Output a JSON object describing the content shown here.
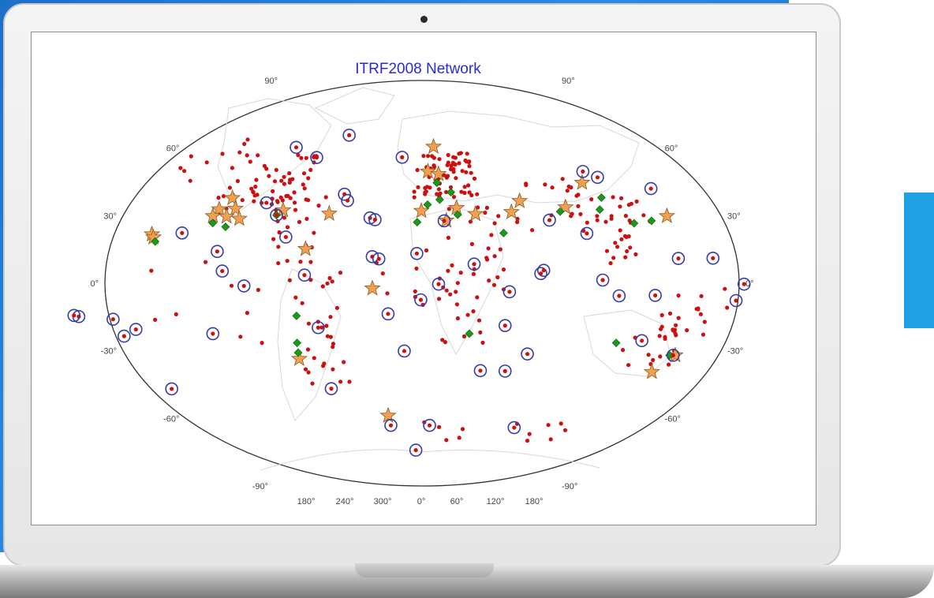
{
  "chart_data": {
    "type": "map",
    "title": "ITRF2008 Network",
    "projection": "elliptical world map (longitude 180° to 180°)",
    "lat_labels_left": [
      "90°",
      "60°",
      "30°",
      "0°",
      "-30°",
      "-60°",
      "-90°"
    ],
    "lat_labels_right": [
      "90°",
      "60°",
      "30°",
      "0°",
      "-30°",
      "-60°",
      "-90°"
    ],
    "lon_labels": [
      "180°",
      "240°",
      "300°",
      "0°",
      "60°",
      "120°",
      "180°"
    ],
    "colors": {
      "site_dot": "#cc1010",
      "ring": "#3a3aa6",
      "star": "#f0a050",
      "diamond": "#1a9a1a",
      "title": "#2b2bd6"
    },
    "marker_types": [
      "red-dot",
      "blue-ring",
      "orange-star",
      "green-diamond"
    ],
    "sites": [
      {
        "type": "star",
        "lon": 8.8,
        "lat": 60.6
      },
      {
        "type": "star",
        "lon": 60.6,
        "lat": 36.5
      },
      {
        "type": "star",
        "lon": -84.5,
        "lat": 32.4
      },
      {
        "type": "star",
        "lon": -56.1,
        "lat": 30.9
      },
      {
        "type": "star",
        "lon": -118.6,
        "lat": 37.8
      },
      {
        "type": "star",
        "lon": -113.9,
        "lat": 33.1
      },
      {
        "type": "star",
        "lon": -123.6,
        "lat": 32.8
      },
      {
        "type": "star",
        "lon": -125.8,
        "lat": 29.8
      },
      {
        "type": "star",
        "lon": -117.5,
        "lat": 29.6
      },
      {
        "type": "star",
        "lon": -109.4,
        "lat": 28.6
      },
      {
        "type": "star",
        "lon": -158.0,
        "lat": 21.7
      },
      {
        "type": "star",
        "lon": -156.5,
        "lat": 20.3
      },
      {
        "type": "star",
        "lon": -67.1,
        "lat": 15.2
      },
      {
        "type": "star",
        "lon": -28.2,
        "lat": -2.3
      },
      {
        "type": "star",
        "lon": -75.1,
        "lat": -33.6
      },
      {
        "type": "star",
        "lon": -25.4,
        "lat": -58.8
      },
      {
        "type": "star",
        "lon": 4.0,
        "lat": 49.6
      },
      {
        "type": "star",
        "lon": 11.1,
        "lat": 48.5
      },
      {
        "type": "star",
        "lon": 21.1,
        "lat": 33.4
      },
      {
        "type": "star",
        "lon": -0.4,
        "lat": 32.1
      },
      {
        "type": "star",
        "lon": 32.2,
        "lat": 30.7
      },
      {
        "type": "star",
        "lon": 54.2,
        "lat": 31.6
      },
      {
        "type": "star",
        "lon": 14.5,
        "lat": 27.8
      },
      {
        "type": "star",
        "lon": 104.6,
        "lat": 44.6
      },
      {
        "type": "star",
        "lon": 87.8,
        "lat": 33.7
      },
      {
        "type": "star",
        "lon": 147.3,
        "lat": 29.8
      },
      {
        "type": "star",
        "lon": 153.8,
        "lat": -32.0
      },
      {
        "type": "star",
        "lon": 145.1,
        "lat": -39.4
      },
      {
        "type": "diamond",
        "lon": -154.8,
        "lat": 18.5
      },
      {
        "type": "diamond",
        "lon": -124.4,
        "lat": 26.7
      },
      {
        "type": "diamond",
        "lon": -116.1,
        "lat": 25.0
      },
      {
        "type": "diamond",
        "lon": -87.7,
        "lat": 30.2
      },
      {
        "type": "diamond",
        "lon": -72.2,
        "lat": -14.5
      },
      {
        "type": "diamond",
        "lon": -74.2,
        "lat": -26.5
      },
      {
        "type": "diamond",
        "lon": -74.8,
        "lat": -30.8
      },
      {
        "type": "diamond",
        "lon": 9.7,
        "lat": 44.6
      },
      {
        "type": "diamond",
        "lon": 18.3,
        "lat": 40.4
      },
      {
        "type": "diamond",
        "lon": 11.0,
        "lat": 37.1
      },
      {
        "type": "diamond",
        "lon": 3.4,
        "lat": 34.9
      },
      {
        "type": "diamond",
        "lon": -2.9,
        "lat": 27.1
      },
      {
        "type": "diamond",
        "lon": 21.5,
        "lat": 30.4
      },
      {
        "type": "diamond",
        "lon": 47.8,
        "lat": 22.3
      },
      {
        "type": "diamond",
        "lon": 83.8,
        "lat": 31.8
      },
      {
        "type": "diamond",
        "lon": 112.3,
        "lat": 38.0
      },
      {
        "type": "diamond",
        "lon": 108.3,
        "lat": 32.7
      },
      {
        "type": "diamond",
        "lon": 126.0,
        "lat": 26.6
      },
      {
        "type": "diamond",
        "lon": 136.9,
        "lat": 27.7
      },
      {
        "type": "diamond",
        "lon": 27.7,
        "lat": -22.4
      },
      {
        "type": "diamond",
        "lon": 115.3,
        "lat": -26.5
      },
      {
        "type": "diamond",
        "lon": 150.3,
        "lat": -32.0
      },
      {
        "type": "ring",
        "lon": -96.2,
        "lat": 60.3
      },
      {
        "type": "ring",
        "lon": -60.5,
        "lat": 65.7
      },
      {
        "type": "ring",
        "lon": -76.2,
        "lat": 55.8
      },
      {
        "type": "ring",
        "lon": -14.4,
        "lat": 55.9
      },
      {
        "type": "ring",
        "lon": 109.4,
        "lat": 49.6
      },
      {
        "type": "ring",
        "lon": 116.8,
        "lat": 47.0
      },
      {
        "type": "ring",
        "lon": 146.9,
        "lat": 42.0
      },
      {
        "type": "ring",
        "lon": -49.0,
        "lat": 39.5
      },
      {
        "type": "ring",
        "lon": -87.7,
        "lat": 30.2
      },
      {
        "type": "ring",
        "lon": -31.2,
        "lat": 29.0
      },
      {
        "type": "ring",
        "lon": -28.1,
        "lat": 28.2
      },
      {
        "type": "ring",
        "lon": 13.2,
        "lat": 27.7
      },
      {
        "type": "ring",
        "lon": 76.1,
        "lat": 28.0
      },
      {
        "type": "ring",
        "lon": -79.4,
        "lat": 20.5
      },
      {
        "type": "ring",
        "lon": 96.5,
        "lat": 22.1
      },
      {
        "type": "ring",
        "lon": -117.7,
        "lat": 14.1
      },
      {
        "type": "ring",
        "lon": -28.5,
        "lat": 11.8
      },
      {
        "type": "ring",
        "lon": -24.7,
        "lat": 10.8
      },
      {
        "type": "ring",
        "lon": -3.0,
        "lat": 13.2
      },
      {
        "type": "ring",
        "lon": 29.7,
        "lat": 8.5
      },
      {
        "type": "ring",
        "lon": 146.6,
        "lat": 11.0
      },
      {
        "type": "ring",
        "lon": 166.4,
        "lat": 11.1
      },
      {
        "type": "ring",
        "lon": -66.8,
        "lat": 3.6
      },
      {
        "type": "ring",
        "lon": 67.5,
        "lat": 4.3
      },
      {
        "type": "ring",
        "lon": 69.2,
        "lat": 5.7
      },
      {
        "type": "ring",
        "lon": -101.1,
        "lat": -1.2
      },
      {
        "type": "ring",
        "lon": 9.4,
        "lat": -0.4
      },
      {
        "type": "ring",
        "lon": 182.8,
        "lat": -0.4
      },
      {
        "type": "ring",
        "lon": -197.5,
        "lat": -14.8
      },
      {
        "type": "ring",
        "lon": -178.2,
        "lat": -16.0
      },
      {
        "type": "ring",
        "lon": -175.2,
        "lat": -23.5
      },
      {
        "type": "ring",
        "lon": -166.8,
        "lat": -20.5
      },
      {
        "type": "ring",
        "lon": -0.7,
        "lat": -7.4
      },
      {
        "type": "ring",
        "lon": -19.5,
        "lat": -13.6
      },
      {
        "type": "ring",
        "lon": 49.7,
        "lat": -3.8
      },
      {
        "type": "ring",
        "lon": 132.6,
        "lat": -5.4
      },
      {
        "type": "ring",
        "lon": 178.9,
        "lat": -7.7
      },
      {
        "type": "ring",
        "lon": -60.4,
        "lat": -19.7
      },
      {
        "type": "ring",
        "lon": -122.6,
        "lat": -22.4
      },
      {
        "type": "ring",
        "lon": 48.2,
        "lat": -18.8
      },
      {
        "type": "ring",
        "lon": -10.7,
        "lat": -30.1
      },
      {
        "type": "ring",
        "lon": 63.8,
        "lat": -31.4
      },
      {
        "type": "ring",
        "lon": 36.7,
        "lat": -38.8
      },
      {
        "type": "ring",
        "lon": 52.3,
        "lat": -39.0
      },
      {
        "type": "ring",
        "lon": 130.1,
        "lat": -25.5
      },
      {
        "type": "ring",
        "lon": 152.5,
        "lat": -32.0
      },
      {
        "type": "ring",
        "lon": -166.5,
        "lat": -46.9
      },
      {
        "type": "ring",
        "lon": -60.3,
        "lat": -46.8
      },
      {
        "type": "ring",
        "lon": -24.8,
        "lat": -63.1
      },
      {
        "type": "ring",
        "lon": 6.0,
        "lat": -63.1
      },
      {
        "type": "ring",
        "lon": 74.5,
        "lat": -64.1
      },
      {
        "type": "ring",
        "lon": -6.2,
        "lat": -74.1
      },
      {
        "type": "ring",
        "lon": -140.6,
        "lat": 22.3
      },
      {
        "type": "ring",
        "lon": -200.1,
        "lat": -14.3
      },
      {
        "type": "ring",
        "lon": -113.6,
        "lat": 5.4
      },
      {
        "type": "ring",
        "lon": 102.6,
        "lat": 1.4
      },
      {
        "type": "ring",
        "lon": 112.1,
        "lat": -5.6
      },
      {
        "type": "ring",
        "lon": -46.3,
        "lat": 36.7
      },
      {
        "type": "ring",
        "lon": -96.2,
        "lat": 35.7
      }
    ]
  }
}
